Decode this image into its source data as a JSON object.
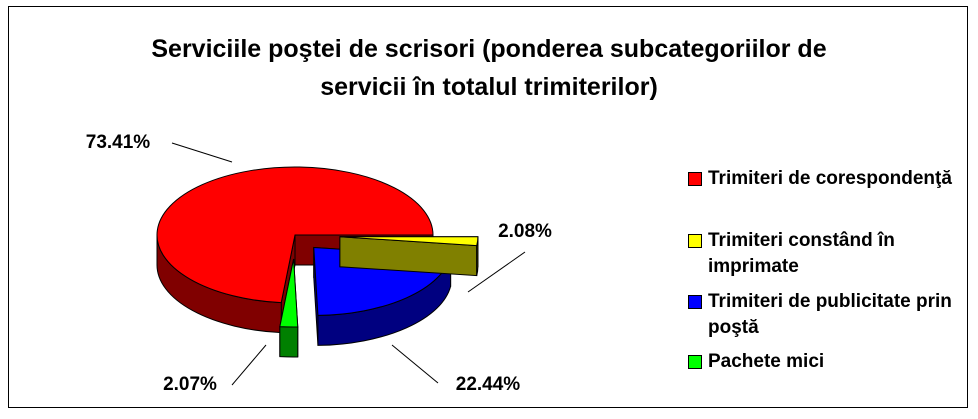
{
  "chart_data": {
    "type": "pie",
    "title": "Serviciile poştei de scrisori (ponderea subcategoriilor de servicii în totalul trimiterilor)",
    "categories": [
      "Trimiteri de corespondenţă",
      "Trimiteri constând în imprimate",
      "Trimiteri de publicitate prin poştă",
      "Pachete mici"
    ],
    "values": [
      73.41,
      2.08,
      22.44,
      2.07
    ],
    "value_labels": [
      "73.41%",
      "2.08%",
      "22.44%",
      "2.07%"
    ],
    "colors": [
      "#ff0000",
      "#ffff00",
      "#0000ff",
      "#00ff00"
    ],
    "legend": "right"
  }
}
